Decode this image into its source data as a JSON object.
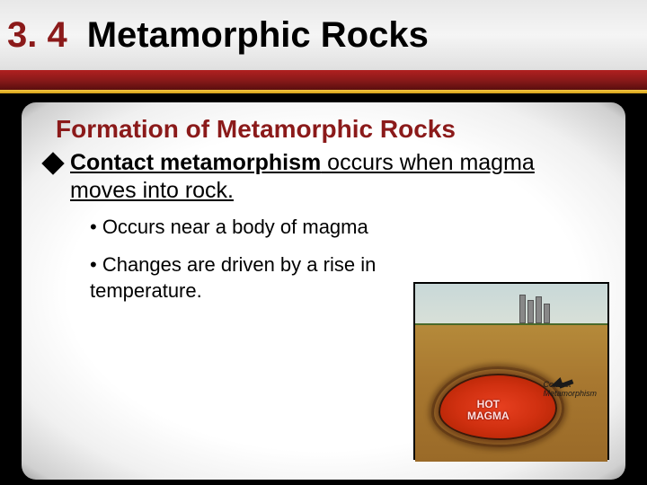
{
  "header": {
    "number": "3. 4",
    "title": "Metamorphic Rocks"
  },
  "subtitle": "Formation of Metamorphic Rocks",
  "main_point": {
    "bold_part": "Contact metamorphism",
    "rest": " occurs when magma moves into rock."
  },
  "bullets": [
    "• Occurs near a body of magma",
    "• Changes are driven by a rise in temperature."
  ],
  "diagram": {
    "magma_label_line1": "HOT",
    "magma_label_line2": "MAGMA",
    "contact_label_line1": "Contact",
    "contact_label_line2": "Metamorphism",
    "colors": {
      "sky": "#c8d8d8",
      "ground": "#a87830",
      "magma_core": "#e84020",
      "magma_edge": "#a82000",
      "border": "#000000"
    }
  },
  "colors": {
    "heading_red": "#8b1a1a",
    "gold": "#d4a017",
    "black": "#000000",
    "white": "#ffffff"
  }
}
